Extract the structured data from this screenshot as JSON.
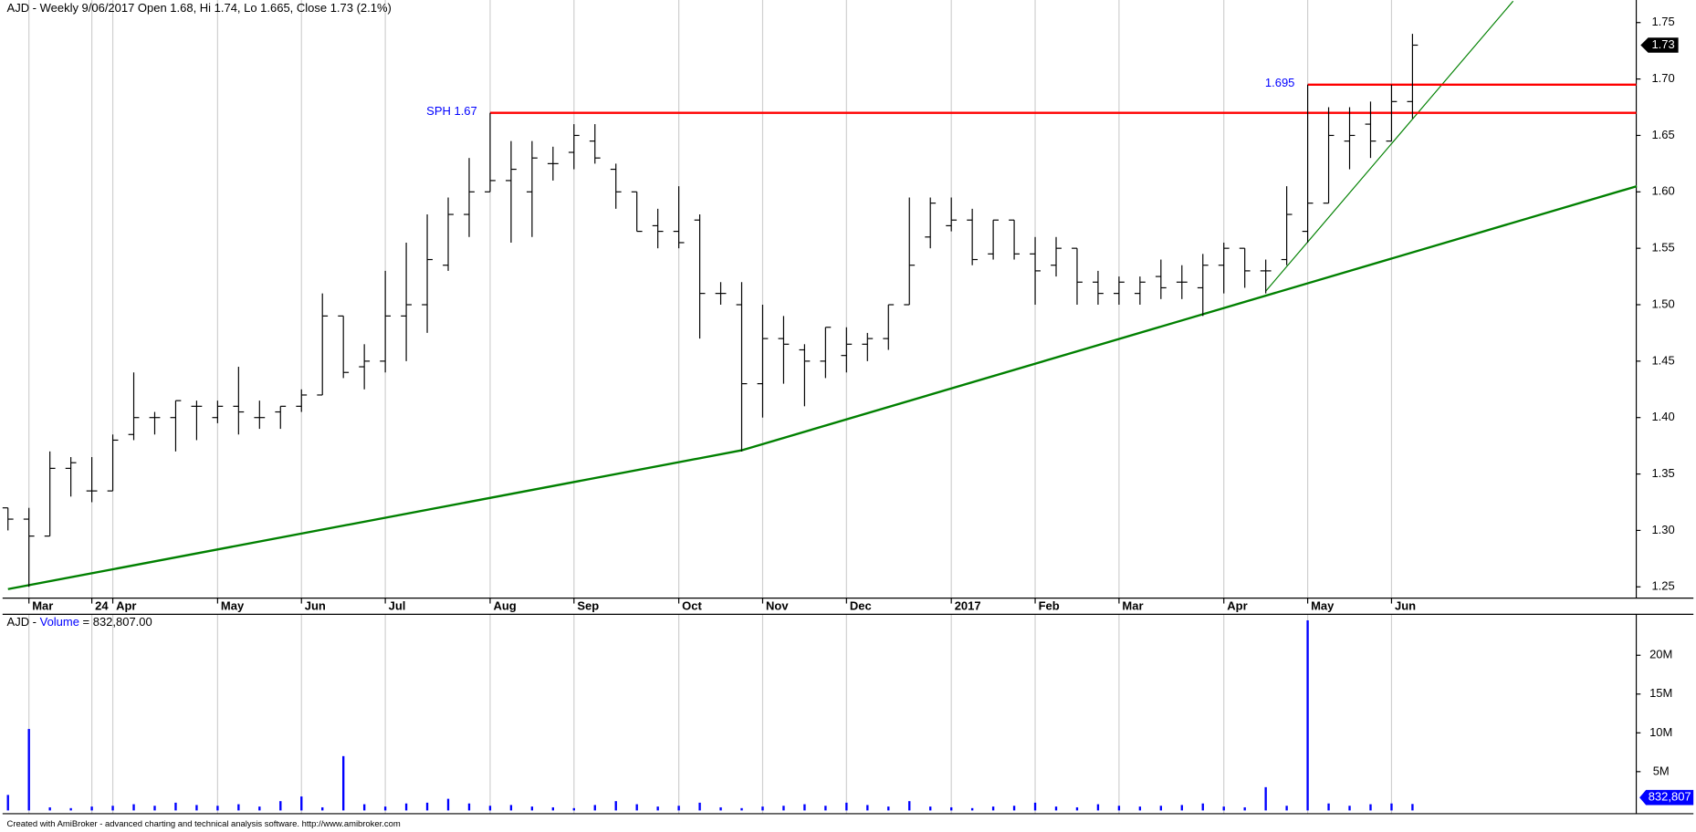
{
  "chart_data": [
    {
      "type": "ohlc",
      "title": "AJD - Weekly 9/06/2017 Open 1.68, Hi 1.74, Lo 1.665, Close 1.73 (2.1%)",
      "categories": [
        null,
        "Mar",
        null,
        null,
        "24",
        "Apr",
        null,
        null,
        null,
        null,
        "May",
        null,
        null,
        null,
        "Jun",
        null,
        null,
        null,
        "Jul",
        null,
        null,
        null,
        null,
        "Aug",
        null,
        null,
        null,
        "Sep",
        null,
        null,
        null,
        null,
        "Oct",
        null,
        null,
        null,
        "Nov",
        null,
        null,
        null,
        "Dec",
        null,
        null,
        null,
        null,
        "2017",
        null,
        null,
        null,
        "Feb",
        null,
        null,
        null,
        "Mar",
        null,
        null,
        null,
        null,
        "Apr",
        null,
        null,
        null,
        "May",
        null,
        null,
        null,
        "Jun",
        null
      ],
      "color": "#000000",
      "open": [
        1.32,
        1.31,
        1.295,
        1.355,
        1.335,
        1.335,
        1.385,
        1.4,
        1.4,
        1.41,
        1.4,
        1.41,
        1.4,
        1.405,
        1.41,
        1.42,
        1.49,
        1.445,
        1.45,
        1.49,
        1.5,
        1.535,
        1.58,
        1.6,
        1.61,
        1.6,
        1.625,
        1.635,
        1.645,
        1.62,
        1.6,
        1.57,
        1.565,
        1.575,
        1.51,
        1.5,
        1.43,
        1.47,
        1.46,
        1.45,
        1.455,
        1.465,
        1.47,
        1.5,
        1.56,
        1.57,
        1.575,
        1.545,
        1.575,
        1.545,
        1.535,
        1.55,
        1.52,
        1.51,
        1.51,
        1.525,
        1.52,
        1.515,
        1.535,
        1.55,
        1.53,
        1.54,
        1.565,
        1.59,
        1.645,
        1.66,
        1.645,
        1.68
      ],
      "high": [
        1.32,
        1.32,
        1.37,
        1.365,
        1.365,
        1.385,
        1.44,
        1.405,
        1.415,
        1.415,
        1.415,
        1.445,
        1.415,
        1.41,
        1.425,
        1.51,
        1.49,
        1.465,
        1.53,
        1.555,
        1.58,
        1.595,
        1.63,
        1.67,
        1.645,
        1.645,
        1.64,
        1.66,
        1.66,
        1.625,
        1.6,
        1.585,
        1.605,
        1.58,
        1.52,
        1.52,
        1.5,
        1.49,
        1.465,
        1.48,
        1.48,
        1.475,
        1.5,
        1.595,
        1.595,
        1.595,
        1.585,
        1.575,
        1.575,
        1.56,
        1.56,
        1.55,
        1.53,
        1.525,
        1.525,
        1.54,
        1.535,
        1.545,
        1.555,
        1.55,
        1.54,
        1.605,
        1.695,
        1.675,
        1.675,
        1.68,
        1.695,
        1.74
      ],
      "low": [
        1.3,
        1.25,
        1.295,
        1.33,
        1.325,
        1.335,
        1.38,
        1.385,
        1.37,
        1.38,
        1.395,
        1.385,
        1.39,
        1.39,
        1.405,
        1.42,
        1.435,
        1.425,
        1.44,
        1.45,
        1.475,
        1.53,
        1.56,
        1.6,
        1.555,
        1.56,
        1.61,
        1.62,
        1.625,
        1.585,
        1.565,
        1.55,
        1.55,
        1.47,
        1.5,
        1.37,
        1.4,
        1.43,
        1.41,
        1.435,
        1.44,
        1.45,
        1.46,
        1.5,
        1.55,
        1.565,
        1.535,
        1.54,
        1.54,
        1.5,
        1.525,
        1.5,
        1.5,
        1.5,
        1.5,
        1.505,
        1.505,
        1.49,
        1.51,
        1.515,
        1.51,
        1.535,
        1.555,
        1.59,
        1.62,
        1.63,
        1.645,
        1.665
      ],
      "close": [
        1.31,
        1.295,
        1.355,
        1.36,
        1.335,
        1.38,
        1.4,
        1.4,
        1.415,
        1.41,
        1.41,
        1.405,
        1.4,
        1.41,
        1.42,
        1.49,
        1.44,
        1.45,
        1.49,
        1.5,
        1.54,
        1.58,
        1.6,
        1.61,
        1.62,
        1.63,
        1.625,
        1.65,
        1.63,
        1.6,
        1.565,
        1.565,
        1.555,
        1.51,
        1.51,
        1.43,
        1.47,
        1.465,
        1.45,
        1.48,
        1.465,
        1.47,
        1.5,
        1.535,
        1.59,
        1.575,
        1.54,
        1.575,
        1.545,
        1.53,
        1.55,
        1.52,
        1.51,
        1.52,
        1.52,
        1.515,
        1.52,
        1.535,
        1.55,
        1.53,
        1.53,
        1.58,
        1.59,
        1.65,
        1.65,
        1.645,
        1.68,
        1.73
      ],
      "ylim": [
        1.24,
        1.77
      ],
      "yticks": [
        {
          "value": 1.25,
          "label": "1.25"
        },
        {
          "value": 1.3,
          "label": "1.30"
        },
        {
          "value": 1.35,
          "label": "1.35"
        },
        {
          "value": 1.4,
          "label": "1.40"
        },
        {
          "value": 1.45,
          "label": "1.45"
        },
        {
          "value": 1.5,
          "label": "1.50"
        },
        {
          "value": 1.55,
          "label": "1.55"
        },
        {
          "value": 1.6,
          "label": "1.60"
        },
        {
          "value": 1.65,
          "label": "1.65"
        },
        {
          "value": 1.7,
          "label": "1.70"
        },
        {
          "value": 1.75,
          "label": "1.75"
        }
      ],
      "grid": true,
      "levels": [
        {
          "text": "SPH 1.67",
          "value": 1.67,
          "from": 23,
          "color": "#ff0000"
        },
        {
          "text": "1.695",
          "value": 1.695,
          "from": 62,
          "color": "#ff0000"
        }
      ],
      "trendlines": [
        {
          "color": "#008000",
          "width": 2,
          "points": [
            [
              0,
              1.248
            ],
            [
              35,
              1.371
            ],
            [
              77.7,
              1.605
            ]
          ]
        },
        {
          "color": "#008000",
          "width": 1,
          "points": [
            [
              60,
              1.512
            ],
            [
              71.8,
              1.769
            ]
          ]
        }
      ]
    },
    {
      "type": "bar",
      "title_prefix": "AJD - ",
      "title_series": "Volume",
      "title_value": " = 832,807.00",
      "color": "#0000ff",
      "values": [
        2000000,
        10500000,
        400000,
        300000,
        500000,
        600000,
        800000,
        600000,
        1000000,
        700000,
        600000,
        800000,
        500000,
        1200000,
        1800000,
        400000,
        7000000,
        800000,
        500000,
        900000,
        1000000,
        1500000,
        900000,
        600000,
        700000,
        500000,
        400000,
        300000,
        700000,
        1200000,
        800000,
        500000,
        600000,
        1000000,
        400000,
        300000,
        500000,
        600000,
        800000,
        600000,
        1000000,
        700000,
        500000,
        1200000,
        500000,
        400000,
        300000,
        500000,
        600000,
        1000000,
        500000,
        400000,
        800000,
        600000,
        500000,
        600000,
        700000,
        900000,
        500000,
        400000,
        3000000,
        600000,
        24500000,
        900000,
        600000,
        800000,
        900000,
        832807
      ],
      "last_label": "832,807",
      "ylim": [
        0,
        25000000
      ],
      "yticks": [
        {
          "value": 5000000,
          "label": "5M"
        },
        {
          "value": 10000000,
          "label": "10M"
        },
        {
          "value": 15000000,
          "label": "15M"
        },
        {
          "value": 20000000,
          "label": "20M"
        }
      ]
    }
  ],
  "footer": "Created with AmiBroker - advanced charting and technical analysis software. http://www.amibroker.com"
}
